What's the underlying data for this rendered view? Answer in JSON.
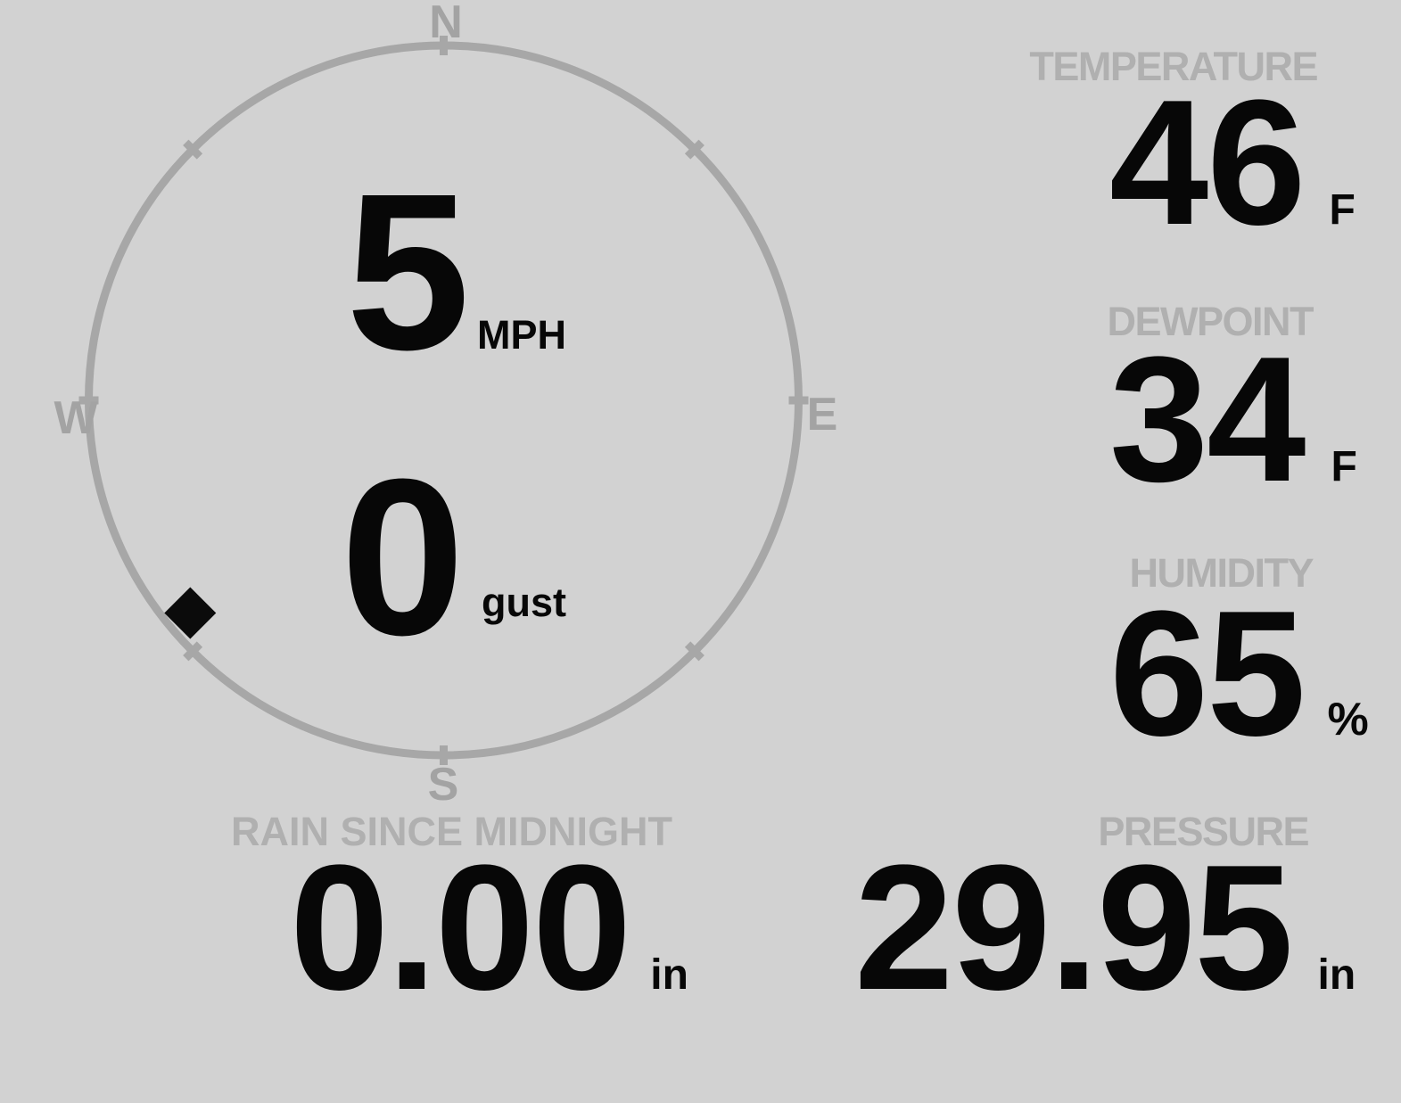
{
  "background_color": "#d2d2d2",
  "colors": {
    "number": "#070707",
    "section_label": "#b0b0b0",
    "compass_ring": "#a7a7a7",
    "cardinal_letter": "#a3a3a3",
    "wind_marker": "#0b0b0b"
  },
  "compass": {
    "cardinals": {
      "north": "N",
      "east": "E",
      "south": "S",
      "west": "W"
    },
    "wind_speed": {
      "value": "5",
      "unit": "MPH"
    },
    "wind_gust": {
      "value": "0",
      "unit": "gust"
    },
    "wind_direction_deg": 230
  },
  "readouts": {
    "temperature": {
      "label": "TEMPERATURE",
      "value": "46",
      "unit": "F"
    },
    "dewpoint": {
      "label": "DEWPOINT",
      "value": "34",
      "unit": "F"
    },
    "humidity": {
      "label": "HUMIDITY",
      "value": "65",
      "unit": "%"
    },
    "rain": {
      "label": "RAIN SINCE MIDNIGHT",
      "value": "0.00",
      "unit": "in"
    },
    "pressure": {
      "label": "PRESSURE",
      "value": "29.95",
      "unit": "in"
    }
  }
}
